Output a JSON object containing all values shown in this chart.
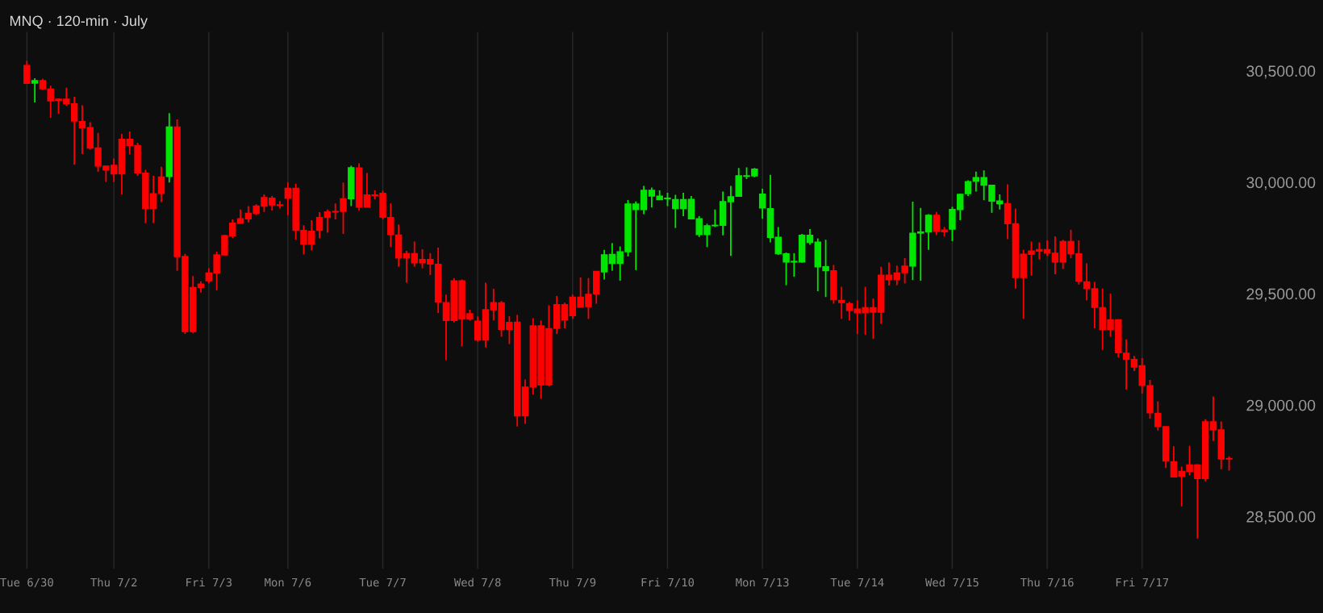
{
  "chart_data": {
    "type": "candlestick",
    "title": "MNQ · 120-min · July",
    "categories": [
      "Tue 6/30",
      null,
      null,
      null,
      null,
      null,
      null,
      null,
      null,
      null,
      null,
      "Thu 7/2",
      null,
      null,
      null,
      null,
      null,
      null,
      null,
      null,
      null,
      null,
      null,
      "Fri 7/3",
      null,
      null,
      null,
      null,
      null,
      null,
      null,
      null,
      null,
      "Mon 7/6",
      null,
      null,
      null,
      null,
      null,
      null,
      null,
      null,
      null,
      null,
      null,
      "Tue 7/7",
      null,
      null,
      null,
      null,
      null,
      null,
      null,
      null,
      null,
      null,
      null,
      "Wed 7/8",
      null,
      null,
      null,
      null,
      null,
      null,
      null,
      null,
      null,
      null,
      null,
      "Thu 7/9",
      null,
      null,
      null,
      null,
      null,
      null,
      null,
      null,
      null,
      null,
      null,
      "Fri 7/10",
      null,
      null,
      null,
      null,
      null,
      null,
      null,
      null,
      null,
      null,
      null,
      "Mon 7/13",
      null,
      null,
      null,
      null,
      null,
      null,
      null,
      null,
      null,
      null,
      null,
      "Tue 7/14",
      null,
      null,
      null,
      null,
      null,
      null,
      null,
      null,
      null,
      null,
      null,
      "Wed 7/15",
      null,
      null,
      null,
      null,
      null,
      null,
      null,
      null,
      null,
      null,
      null,
      "Thu 7/16",
      null,
      null,
      null,
      null,
      null,
      null,
      null,
      null,
      null,
      null,
      null,
      "Fri 7/17",
      null,
      null,
      null,
      null,
      null,
      null,
      null,
      null,
      null,
      null,
      null
    ],
    "ohlc": [
      [
        30524,
        30545,
        30444,
        30444
      ],
      [
        30445,
        30467,
        30358,
        30456
      ],
      [
        30456,
        30464,
        30414,
        30420
      ],
      [
        30418,
        30433,
        30290,
        30365
      ],
      [
        30373,
        30376,
        30308,
        30368
      ],
      [
        30373,
        30424,
        30343,
        30353
      ],
      [
        30352,
        30384,
        30079,
        30275
      ],
      [
        30273,
        30346,
        30127,
        30245
      ],
      [
        30245,
        30270,
        30147,
        30154
      ],
      [
        30154,
        30222,
        30047,
        30073
      ],
      [
        30073,
        30074,
        30002,
        30056
      ],
      [
        30076,
        30107,
        30002,
        30038
      ],
      [
        30193,
        30217,
        29946,
        30038
      ],
      [
        30193,
        30228,
        30125,
        30165
      ],
      [
        30165,
        30177,
        30029,
        30042
      ],
      [
        30041,
        30056,
        29817,
        29882
      ],
      [
        29949,
        30029,
        29817,
        29882
      ],
      [
        30024,
        30070,
        29911,
        29950
      ],
      [
        30026,
        30310,
        29999,
        30248
      ],
      [
        30248,
        30282,
        29603,
        29667
      ],
      [
        29667,
        29679,
        29319,
        29330
      ],
      [
        29528,
        29579,
        29322,
        29330
      ],
      [
        29543,
        29556,
        29505,
        29528
      ],
      [
        29593,
        29614,
        29546,
        29558
      ],
      [
        29674,
        29689,
        29515,
        29593
      ],
      [
        29760,
        29765,
        29674,
        29674
      ],
      [
        29816,
        29833,
        29750,
        29760
      ],
      [
        29836,
        29878,
        29816,
        29816
      ],
      [
        29861,
        29893,
        29820,
        29836
      ],
      [
        29893,
        29901,
        29852,
        29861
      ],
      [
        29931,
        29946,
        29867,
        29893
      ],
      [
        29929,
        29938,
        29873,
        29898
      ],
      [
        29899,
        29916,
        29882,
        29896
      ],
      [
        29973,
        29999,
        29852,
        29928
      ],
      [
        29973,
        29994,
        29742,
        29784
      ],
      [
        29784,
        29807,
        29676,
        29722
      ],
      [
        29780,
        29830,
        29694,
        29722
      ],
      [
        29842,
        29866,
        29748,
        29784
      ],
      [
        29867,
        29878,
        29774,
        29842
      ],
      [
        29869,
        29905,
        29833,
        29867
      ],
      [
        29926,
        29999,
        29768,
        29869
      ],
      [
        29926,
        30074,
        29893,
        30065
      ],
      [
        30064,
        30085,
        29873,
        29888
      ],
      [
        29943,
        30042,
        29888,
        29888
      ],
      [
        29943,
        29964,
        29923,
        29941
      ],
      [
        29950,
        29962,
        29833,
        29843
      ],
      [
        29842,
        29905,
        29709,
        29765
      ],
      [
        29763,
        29810,
        29621,
        29660
      ],
      [
        29680,
        29692,
        29549,
        29660
      ],
      [
        29680,
        29734,
        29621,
        29639
      ],
      [
        29654,
        29700,
        29614,
        29639
      ],
      [
        29654,
        29682,
        29584,
        29633
      ],
      [
        29632,
        29707,
        29413,
        29463
      ],
      [
        29460,
        29496,
        29202,
        29380
      ],
      [
        29558,
        29570,
        29371,
        29380
      ],
      [
        29558,
        29564,
        29263,
        29386
      ],
      [
        29410,
        29428,
        29380,
        29386
      ],
      [
        29377,
        29398,
        29285,
        29292
      ],
      [
        29428,
        29549,
        29259,
        29292
      ],
      [
        29460,
        29522,
        29380,
        29428
      ],
      [
        29459,
        29467,
        29307,
        29340
      ],
      [
        29371,
        29399,
        29274,
        29340
      ],
      [
        29372,
        29405,
        28904,
        28952
      ],
      [
        29081,
        29115,
        28916,
        28952
      ],
      [
        29356,
        29390,
        29047,
        29081
      ],
      [
        29356,
        29380,
        29028,
        29090
      ],
      [
        29343,
        29448,
        29085,
        29090
      ],
      [
        29451,
        29490,
        29319,
        29345
      ],
      [
        29451,
        29460,
        29345,
        29383
      ],
      [
        29484,
        29496,
        29387,
        29402
      ],
      [
        29484,
        29573,
        29440,
        29440
      ],
      [
        29497,
        29570,
        29387,
        29442
      ],
      [
        29600,
        29600,
        29455,
        29499
      ],
      [
        29598,
        29697,
        29564,
        29674
      ],
      [
        29636,
        29727,
        29603,
        29676
      ],
      [
        29636,
        29712,
        29558,
        29688
      ],
      [
        29688,
        29920,
        29667,
        29902
      ],
      [
        29878,
        29914,
        29606,
        29902
      ],
      [
        29878,
        29984,
        29857,
        29964
      ],
      [
        29938,
        29976,
        29887,
        29964
      ],
      [
        29922,
        29964,
        29920,
        29938
      ],
      [
        29926,
        29953,
        29893,
        29929
      ],
      [
        29882,
        29944,
        29795,
        29922
      ],
      [
        29882,
        29953,
        29848,
        29922
      ],
      [
        29836,
        29938,
        29833,
        29923
      ],
      [
        29765,
        29848,
        29754,
        29836
      ],
      [
        29765,
        29814,
        29709,
        29805
      ],
      [
        29805,
        29878,
        29799,
        29807
      ],
      [
        29807,
        29958,
        29762,
        29913
      ],
      [
        29913,
        29984,
        29670,
        29935
      ],
      [
        29937,
        30064,
        29937,
        30029
      ],
      [
        30027,
        30067,
        30014,
        30029
      ],
      [
        30029,
        30064,
        30023,
        30059
      ],
      [
        29885,
        29971,
        29836,
        29947
      ],
      [
        29753,
        30033,
        29730,
        29882
      ],
      [
        29679,
        29799,
        29674,
        29753
      ],
      [
        29642,
        29685,
        29538,
        29679
      ],
      [
        29642,
        29682,
        29576,
        29645
      ],
      [
        29642,
        29768,
        29639,
        29762
      ],
      [
        29730,
        29790,
        29719,
        29762
      ],
      [
        29621,
        29748,
        29511,
        29731
      ],
      [
        29603,
        29742,
        29485,
        29621
      ],
      [
        29603,
        29629,
        29455,
        29473
      ],
      [
        29470,
        29531,
        29387,
        29460
      ],
      [
        29455,
        29463,
        29380,
        29425
      ],
      [
        29431,
        29470,
        29319,
        29414
      ],
      [
        29437,
        29531,
        29316,
        29414
      ],
      [
        29437,
        29478,
        29297,
        29417
      ],
      [
        29583,
        29621,
        29365,
        29417
      ],
      [
        29583,
        29641,
        29537,
        29564
      ],
      [
        29593,
        29626,
        29538,
        29564
      ],
      [
        29624,
        29660,
        29546,
        29594
      ],
      [
        29624,
        29913,
        29561,
        29771
      ],
      [
        29772,
        29885,
        29558,
        29777
      ],
      [
        29777,
        29857,
        29697,
        29852
      ],
      [
        29852,
        29867,
        29763,
        29780
      ],
      [
        29786,
        29799,
        29757,
        29778
      ],
      [
        29790,
        29890,
        29736,
        29878
      ],
      [
        29878,
        29949,
        29830,
        29946
      ],
      [
        29949,
        30009,
        29938,
        30003
      ],
      [
        30005,
        30048,
        29958,
        30021
      ],
      [
        29987,
        30053,
        29919,
        30021
      ],
      [
        29916,
        29988,
        29863,
        29987
      ],
      [
        29904,
        29946,
        29878,
        29916
      ],
      [
        29904,
        29991,
        29745,
        29814
      ],
      [
        29814,
        29882,
        29523,
        29573
      ],
      [
        29677,
        29697,
        29387,
        29573
      ],
      [
        29692,
        29734,
        29581,
        29677
      ],
      [
        29698,
        29730,
        29654,
        29691
      ],
      [
        29698,
        29739,
        29670,
        29682
      ],
      [
        29682,
        29757,
        29587,
        29642
      ],
      [
        29734,
        29742,
        29611,
        29642
      ],
      [
        29734,
        29787,
        29659,
        29679
      ],
      [
        29679,
        29739,
        29541,
        29556
      ],
      [
        29553,
        29636,
        29470,
        29523
      ],
      [
        29522,
        29553,
        29345,
        29439
      ],
      [
        29437,
        29523,
        29248,
        29339
      ],
      [
        29383,
        29500,
        29307,
        29339
      ],
      [
        29383,
        29384,
        29214,
        29235
      ],
      [
        29233,
        29295,
        29070,
        29205
      ],
      [
        29205,
        29221,
        29153,
        29171
      ],
      [
        29177,
        29211,
        29052,
        29088
      ],
      [
        29087,
        29113,
        28939,
        28965
      ],
      [
        28963,
        29017,
        28886,
        28904
      ],
      [
        28903,
        28904,
        28718,
        28749
      ],
      [
        28746,
        28815,
        28675,
        28678
      ],
      [
        28702,
        28724,
        28546,
        28680
      ],
      [
        28731,
        28817,
        28685,
        28703
      ],
      [
        28731,
        28735,
        28401,
        28670
      ],
      [
        28925,
        28937,
        28658,
        28670
      ],
      [
        28925,
        29039,
        28839,
        28889
      ],
      [
        28889,
        28927,
        28712,
        28758
      ],
      [
        28760,
        28770,
        28706,
        28758
      ]
    ],
    "colors": [
      "#ff0000",
      "#00e600",
      "#ff0000",
      "#ff0000",
      "#ff0000",
      "#ff0000",
      "#ff0000",
      "#ff0000",
      "#ff0000",
      "#ff0000",
      "#ff0000",
      "#ff0000",
      "#ff0000",
      "#ff0000",
      "#ff0000",
      "#ff0000",
      "#ff0000",
      "#ff0000",
      "#00e600",
      "#ff0000",
      "#ff0000",
      "#ff0000",
      "#ff0000",
      "#ff0000",
      "#ff0000",
      "#ff0000",
      "#ff0000",
      "#ff0000",
      "#ff0000",
      "#ff0000",
      "#ff0000",
      "#ff0000",
      "#ff0000",
      "#ff0000",
      "#ff0000",
      "#ff0000",
      "#ff0000",
      "#ff0000",
      "#ff0000",
      "#ff0000",
      "#ff0000",
      "#00e600",
      "#ff0000",
      "#ff0000",
      "#ff0000",
      "#ff0000",
      "#ff0000",
      "#ff0000",
      "#ff0000",
      "#ff0000",
      "#ff0000",
      "#ff0000",
      "#ff0000",
      "#ff0000",
      "#ff0000",
      "#ff0000",
      "#ff0000",
      "#ff0000",
      "#ff0000",
      "#ff0000",
      "#ff0000",
      "#ff0000",
      "#ff0000",
      "#ff0000",
      "#ff0000",
      "#ff0000",
      "#ff0000",
      "#ff0000",
      "#ff0000",
      "#ff0000",
      "#ff0000",
      "#ff0000",
      "#ff0000",
      "#00e600",
      "#00e600",
      "#00e600",
      "#00e600",
      "#00e600",
      "#00e600",
      "#00e600",
      "#00e600",
      "#00e600",
      "#00e600",
      "#00e600",
      "#00e600",
      "#00e600",
      "#00e600",
      "#00e600",
      "#00e600",
      "#00e600",
      "#00e600",
      "#00e600",
      "#00e600",
      "#00e600",
      "#00e600",
      "#00e600",
      "#00e600",
      "#00e600",
      "#00e600",
      "#00e600",
      "#00e600",
      "#00e600",
      "#ff0000",
      "#ff0000",
      "#ff0000",
      "#ff0000",
      "#ff0000",
      "#ff0000",
      "#ff0000",
      "#ff0000",
      "#ff0000",
      "#ff0000",
      "#00e600",
      "#00e600",
      "#00e600",
      "#ff0000",
      "#ff0000",
      "#00e600",
      "#00e600",
      "#00e600",
      "#00e600",
      "#00e600",
      "#00e600",
      "#00e600",
      "#ff0000",
      "#ff0000",
      "#ff0000",
      "#ff0000",
      "#ff0000",
      "#ff0000",
      "#ff0000",
      "#ff0000",
      "#ff0000",
      "#ff0000",
      "#ff0000",
      "#ff0000",
      "#ff0000",
      "#ff0000",
      "#ff0000",
      "#ff0000",
      "#ff0000",
      "#ff0000",
      "#ff0000",
      "#ff0000",
      "#ff0000",
      "#ff0000",
      "#ff0000",
      "#ff0000",
      "#ff0000",
      "#ff0000",
      "#ff0000",
      "#ff0000",
      "#ff0000"
    ],
    "ylim": [
      28265,
      30675
    ],
    "yticks": [
      {
        "value": 28500,
        "label": "28,500.00"
      },
      {
        "value": 29000,
        "label": "29,000.00"
      },
      {
        "value": 29500,
        "label": "29,500.00"
      },
      {
        "value": 30000,
        "label": "30,000.00"
      },
      {
        "value": 30500,
        "label": "30,500.00"
      }
    ],
    "grid": "x"
  }
}
